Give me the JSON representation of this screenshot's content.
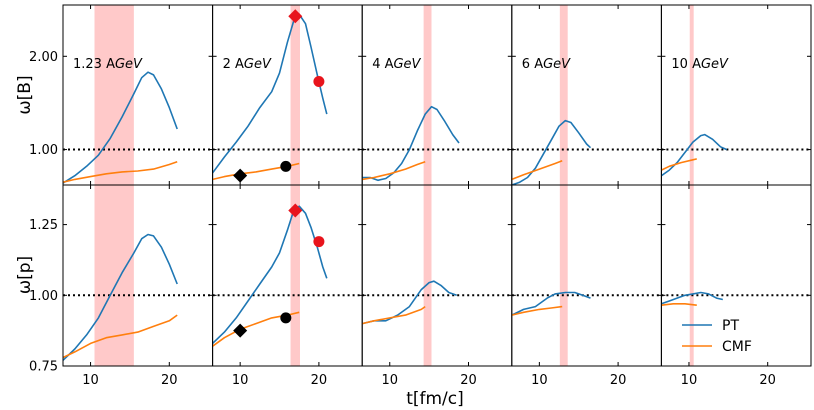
{
  "chart_data": {
    "type": "line",
    "xlabel": "t[fm/c]",
    "xlim": [
      6.5,
      25.5
    ],
    "xticks": [
      "10",
      "20"
    ],
    "xtick_values": [
      10,
      20
    ],
    "grid": false,
    "legend": {
      "location": "bottom-right of lower-right panel",
      "entries": [
        {
          "name": "PT",
          "color": "#1f77b4"
        },
        {
          "name": "CMF",
          "color": "#ff7f0e"
        }
      ]
    },
    "colors": {
      "pt": "#1f77b4",
      "cmf": "#ff7f0e",
      "band": "#ffc9c9",
      "marker_red": "#e8141c",
      "marker_black": "#000000",
      "reference_line": "#000000"
    },
    "rows": [
      {
        "id": "B",
        "ylabel": "ω[B]",
        "ylim": [
          0.62,
          2.55
        ],
        "yticks": [
          "1.00",
          "2.00"
        ],
        "ytick_values": [
          1.0,
          2.0
        ],
        "reference": 1.0
      },
      {
        "id": "p",
        "ylabel": "ω[p]",
        "ylim": [
          0.75,
          1.39
        ],
        "yticks": [
          "0.75",
          "1.00",
          "1.25"
        ],
        "ytick_values": [
          0.75,
          1.0,
          1.25
        ],
        "reference": 1.0
      }
    ],
    "panels": [
      {
        "energy": "1.23",
        "unit": "AGeV",
        "band": [
          10.5,
          15.5
        ],
        "B": {
          "PT": [
            [
              6.5,
              0.64
            ],
            [
              8,
              0.72
            ],
            [
              9.5,
              0.82
            ],
            [
              11,
              0.94
            ],
            [
              12.5,
              1.12
            ],
            [
              14,
              1.35
            ],
            [
              15.5,
              1.6
            ],
            [
              16.5,
              1.77
            ],
            [
              17.3,
              1.83
            ],
            [
              18,
              1.8
            ],
            [
              19,
              1.65
            ],
            [
              20,
              1.45
            ],
            [
              21,
              1.22
            ]
          ],
          "CMF": [
            [
              6.5,
              0.65
            ],
            [
              8,
              0.68
            ],
            [
              10,
              0.71
            ],
            [
              12,
              0.74
            ],
            [
              14,
              0.76
            ],
            [
              16,
              0.77
            ],
            [
              18,
              0.79
            ],
            [
              20,
              0.84
            ],
            [
              21,
              0.87
            ]
          ]
        },
        "p": {
          "PT": [
            [
              6.5,
              0.77
            ],
            [
              8,
              0.81
            ],
            [
              9.5,
              0.86
            ],
            [
              11,
              0.92
            ],
            [
              12.5,
              1.0
            ],
            [
              14,
              1.08
            ],
            [
              15.5,
              1.15
            ],
            [
              16.5,
              1.2
            ],
            [
              17.3,
              1.215
            ],
            [
              18,
              1.21
            ],
            [
              19,
              1.17
            ],
            [
              20,
              1.11
            ],
            [
              21,
              1.04
            ]
          ],
          "CMF": [
            [
              6.5,
              0.78
            ],
            [
              8,
              0.8
            ],
            [
              10,
              0.83
            ],
            [
              12,
              0.85
            ],
            [
              14,
              0.86
            ],
            [
              16,
              0.87
            ],
            [
              18,
              0.89
            ],
            [
              20,
              0.91
            ],
            [
              21,
              0.93
            ]
          ]
        }
      },
      {
        "energy": "2",
        "unit": "AGeV",
        "band": [
          16.4,
          17.6
        ],
        "B": {
          "PT": [
            [
              6.5,
              0.75
            ],
            [
              8,
              0.92
            ],
            [
              9.5,
              1.08
            ],
            [
              11,
              1.25
            ],
            [
              12.5,
              1.45
            ],
            [
              14,
              1.62
            ],
            [
              15,
              1.82
            ],
            [
              16,
              2.15
            ],
            [
              16.8,
              2.38
            ],
            [
              17.5,
              2.45
            ],
            [
              18.3,
              2.35
            ],
            [
              19,
              2.1
            ],
            [
              19.8,
              1.8
            ],
            [
              20.5,
              1.55
            ],
            [
              21,
              1.38
            ]
          ],
          "CMF": [
            [
              6.5,
              0.68
            ],
            [
              8,
              0.71
            ],
            [
              10,
              0.74
            ],
            [
              12,
              0.76
            ],
            [
              14,
              0.79
            ],
            [
              16,
              0.82
            ],
            [
              17.5,
              0.85
            ]
          ]
        },
        "p": {
          "PT": [
            [
              6.5,
              0.83
            ],
            [
              8,
              0.87
            ],
            [
              9.5,
              0.92
            ],
            [
              11,
              0.98
            ],
            [
              12.5,
              1.04
            ],
            [
              14,
              1.1
            ],
            [
              15,
              1.15
            ],
            [
              16,
              1.23
            ],
            [
              16.8,
              1.3
            ],
            [
              17.5,
              1.315
            ],
            [
              18.3,
              1.29
            ],
            [
              19,
              1.24
            ],
            [
              19.8,
              1.17
            ],
            [
              20.5,
              1.1
            ],
            [
              21,
              1.06
            ]
          ],
          "CMF": [
            [
              6.5,
              0.82
            ],
            [
              8,
              0.85
            ],
            [
              10,
              0.88
            ],
            [
              12,
              0.9
            ],
            [
              14,
              0.92
            ],
            [
              16,
              0.93
            ],
            [
              17.5,
              0.94
            ]
          ]
        },
        "markers": {
          "B": [
            {
              "shape": "diamond",
              "color": "red",
              "t": 17.0,
              "value": 2.43
            },
            {
              "shape": "circle",
              "color": "red",
              "t": 20.0,
              "value": 1.73
            },
            {
              "shape": "diamond",
              "color": "black",
              "t": 10.0,
              "value": 0.72
            },
            {
              "shape": "circle",
              "color": "black",
              "t": 15.8,
              "value": 0.82
            }
          ],
          "p": [
            {
              "shape": "diamond",
              "color": "red",
              "t": 17.0,
              "value": 1.3
            },
            {
              "shape": "circle",
              "color": "red",
              "t": 20.0,
              "value": 1.19
            },
            {
              "shape": "diamond",
              "color": "black",
              "t": 10.0,
              "value": 0.875
            },
            {
              "shape": "circle",
              "color": "black",
              "t": 15.8,
              "value": 0.92
            }
          ]
        }
      },
      {
        "energy": "4",
        "unit": "AGeV",
        "band": [
          14.3,
          15.3
        ],
        "B": {
          "PT": [
            [
              6.5,
              0.7
            ],
            [
              7.5,
              0.7
            ],
            [
              8.5,
              0.67
            ],
            [
              9.5,
              0.69
            ],
            [
              10.5,
              0.75
            ],
            [
              11.5,
              0.85
            ],
            [
              12.5,
              1.0
            ],
            [
              13.5,
              1.2
            ],
            [
              14.5,
              1.38
            ],
            [
              15.3,
              1.46
            ],
            [
              16,
              1.43
            ],
            [
              17,
              1.3
            ],
            [
              18,
              1.16
            ],
            [
              18.8,
              1.07
            ]
          ],
          "CMF": [
            [
              6.5,
              0.68
            ],
            [
              8,
              0.7
            ],
            [
              10,
              0.74
            ],
            [
              12,
              0.79
            ],
            [
              13.5,
              0.84
            ],
            [
              14.5,
              0.87
            ]
          ]
        },
        "p": {
          "PT": [
            [
              6.5,
              0.9
            ],
            [
              8,
              0.91
            ],
            [
              9.5,
              0.91
            ],
            [
              11,
              0.93
            ],
            [
              12.5,
              0.96
            ],
            [
              14,
              1.02
            ],
            [
              15,
              1.045
            ],
            [
              15.6,
              1.05
            ],
            [
              16.5,
              1.035
            ],
            [
              17.5,
              1.01
            ],
            [
              18.5,
              1.0
            ]
          ],
          "CMF": [
            [
              6.5,
              0.9
            ],
            [
              8,
              0.91
            ],
            [
              10,
              0.92
            ],
            [
              12,
              0.93
            ],
            [
              14,
              0.95
            ],
            [
              14.5,
              0.96
            ]
          ]
        }
      },
      {
        "energy": "6",
        "unit": "AGeV",
        "band": [
          12.6,
          13.6
        ],
        "B": {
          "PT": [
            [
              6.5,
              0.62
            ],
            [
              7.5,
              0.65
            ],
            [
              8.5,
              0.7
            ],
            [
              9.5,
              0.8
            ],
            [
              10.5,
              0.95
            ],
            [
              11.5,
              1.1
            ],
            [
              12.5,
              1.25
            ],
            [
              13.3,
              1.31
            ],
            [
              14,
              1.29
            ],
            [
              15,
              1.18
            ],
            [
              16,
              1.06
            ],
            [
              16.5,
              1.02
            ]
          ],
          "CMF": [
            [
              6.5,
              0.68
            ],
            [
              8,
              0.73
            ],
            [
              10,
              0.79
            ],
            [
              12,
              0.85
            ],
            [
              12.9,
              0.88
            ]
          ]
        },
        "p": {
          "PT": [
            [
              6.5,
              0.93
            ],
            [
              8,
              0.95
            ],
            [
              9.5,
              0.96
            ],
            [
              11,
              0.99
            ],
            [
              12,
              1.005
            ],
            [
              13.3,
              1.01
            ],
            [
              14.5,
              1.01
            ],
            [
              15.5,
              1.0
            ],
            [
              16.5,
              0.99
            ]
          ],
          "CMF": [
            [
              6.5,
              0.93
            ],
            [
              8,
              0.94
            ],
            [
              10,
              0.95
            ],
            [
              11.5,
              0.955
            ],
            [
              12.9,
              0.96
            ]
          ]
        }
      },
      {
        "energy": "10",
        "unit": "AGeV",
        "band": [
          10.1,
          10.6
        ],
        "B": {
          "PT": [
            [
              6.5,
              0.72
            ],
            [
              7.5,
              0.78
            ],
            [
              8.5,
              0.86
            ],
            [
              9.5,
              0.97
            ],
            [
              10.5,
              1.08
            ],
            [
              11.5,
              1.15
            ],
            [
              12,
              1.16
            ],
            [
              13,
              1.11
            ],
            [
              14,
              1.03
            ],
            [
              14.8,
              1.0
            ]
          ],
          "CMF": [
            [
              6.5,
              0.78
            ],
            [
              7.5,
              0.82
            ],
            [
              9,
              0.86
            ],
            [
              10.5,
              0.89
            ],
            [
              11,
              0.9
            ]
          ]
        },
        "p": {
          "PT": [
            [
              6.5,
              0.97
            ],
            [
              7.5,
              0.98
            ],
            [
              8.5,
              0.99
            ],
            [
              9.5,
              1.0
            ],
            [
              10.5,
              1.005
            ],
            [
              11.5,
              1.01
            ],
            [
              12.5,
              1.005
            ],
            [
              13.5,
              0.99
            ],
            [
              14.3,
              0.985
            ]
          ],
          "CMF": [
            [
              6.5,
              0.965
            ],
            [
              8,
              0.97
            ],
            [
              9.5,
              0.97
            ],
            [
              11,
              0.965
            ]
          ]
        }
      }
    ]
  }
}
